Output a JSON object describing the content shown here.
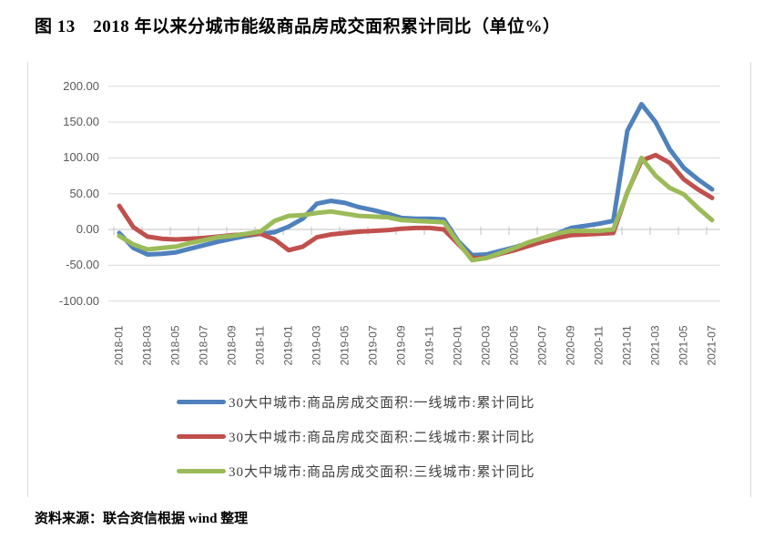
{
  "title": "图 13　2018 年以来分城市能级商品房成交面积累计同比（单位%）",
  "source": "资料来源：联合资信根据 wind 整理",
  "chart_data": {
    "type": "line",
    "x": [
      "2018-01",
      "2018-02",
      "2018-03",
      "2018-04",
      "2018-05",
      "2018-06",
      "2018-07",
      "2018-08",
      "2018-09",
      "2018-10",
      "2018-11",
      "2018-12",
      "2019-01",
      "2019-02",
      "2019-03",
      "2019-04",
      "2019-05",
      "2019-06",
      "2019-07",
      "2019-08",
      "2019-09",
      "2019-10",
      "2019-11",
      "2019-12",
      "2020-01",
      "2020-02",
      "2020-03",
      "2020-04",
      "2020-05",
      "2020-06",
      "2020-07",
      "2020-08",
      "2020-09",
      "2020-10",
      "2020-11",
      "2020-12",
      "2021-01",
      "2021-02",
      "2021-03",
      "2021-04",
      "2021-05",
      "2021-06",
      "2021-07"
    ],
    "x_tick_labels": [
      "2018-01",
      "2018-03",
      "2018-05",
      "2018-07",
      "2018-09",
      "2018-11",
      "2019-01",
      "2019-03",
      "2019-05",
      "2019-07",
      "2019-09",
      "2019-11",
      "2020-01",
      "2020-03",
      "2020-05",
      "2020-07",
      "2020-09",
      "2020-11",
      "2021-01",
      "2021-03",
      "2021-05",
      "2021-07"
    ],
    "series": [
      {
        "name": "30大中城市:商品房成交面积:一线城市:累计同比",
        "color": "#4F81BD",
        "values": [
          -5,
          -26,
          -35,
          -34,
          -32,
          -27,
          -22,
          -17,
          -13,
          -9,
          -6,
          -4,
          4,
          15,
          36,
          40,
          37,
          31,
          27,
          22,
          16,
          15,
          15,
          14,
          -16,
          -36,
          -35,
          -30,
          -25,
          -19,
          -14,
          -6,
          2,
          5,
          8,
          12,
          138,
          175,
          150,
          112,
          86,
          70,
          56
        ]
      },
      {
        "name": "30大中城市:商品房成交面积:二线城市:累计同比",
        "color": "#C0504D",
        "values": [
          33,
          3,
          -10,
          -13,
          -14,
          -13,
          -12,
          -10,
          -8,
          -7,
          -6,
          -14,
          -29,
          -24,
          -11,
          -7,
          -5,
          -3,
          -2,
          -1,
          1,
          2,
          2,
          0,
          -20,
          -40,
          -40,
          -34,
          -29,
          -23,
          -17,
          -12,
          -8,
          -7,
          -6,
          -5,
          52,
          96,
          104,
          93,
          70,
          56,
          44
        ]
      },
      {
        "name": "30大中城市:商品房成交面积:三线城市:累计同比",
        "color": "#9BBB59",
        "values": [
          -9,
          -21,
          -28,
          -26,
          -24,
          -19,
          -15,
          -11,
          -9,
          -6,
          -3,
          12,
          19,
          20,
          23,
          25,
          22,
          19,
          18,
          17,
          13,
          12,
          11,
          10,
          -18,
          -43,
          -40,
          -33,
          -26,
          -18,
          -12,
          -6,
          -2,
          -2,
          -2,
          0,
          51,
          100,
          75,
          58,
          49,
          30,
          13
        ]
      }
    ],
    "y_ticks": [
      200,
      150,
      100,
      50,
      0,
      -50,
      -100
    ],
    "y_tick_labels": [
      "200.00",
      "150.00",
      "100.00",
      "50.00",
      "0.00",
      "-50.00",
      "-100.00"
    ],
    "ylim": [
      -100,
      200
    ],
    "grid": true,
    "legend_position": "bottom",
    "colors": {
      "grid": "#D9D9D9",
      "axis": "#C0C0C0",
      "tick_label": "#595959",
      "legend_text": "#404040"
    }
  }
}
